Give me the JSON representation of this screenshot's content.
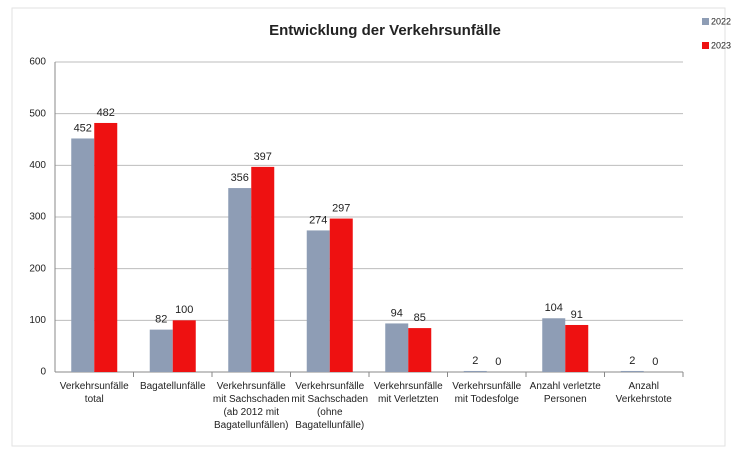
{
  "chart_data": {
    "type": "bar",
    "title": "Entwicklung der Verkehrsunfälle",
    "categories": [
      "Verkehrsunfälle\ntotal",
      "Bagatellunfälle",
      "Verkehrsunfälle\nmit Sachschaden\n(ab 2012 mit\nBagatellunfällen)",
      "Verkehrsunfälle\nmit Sachschaden\n(ohne\nBagatellunfälle)",
      "Verkehrsunfälle\nmit Verletzten",
      "Verkehrsunfälle\nmit Todesfolge",
      "Anzahl verletzte\nPersonen",
      "Anzahl\nVerkehrstote"
    ],
    "series": [
      {
        "name": "2022",
        "color": "#8e9db5",
        "values": [
          452,
          82,
          356,
          274,
          94,
          2,
          104,
          2
        ]
      },
      {
        "name": "2023",
        "color": "#ee1111",
        "values": [
          482,
          100,
          397,
          297,
          85,
          0,
          91,
          0
        ]
      }
    ],
    "ylim": [
      0,
      600
    ],
    "yticks": [
      0,
      100,
      200,
      300,
      400,
      500,
      600
    ],
    "grid": true,
    "legend": "top-right"
  }
}
